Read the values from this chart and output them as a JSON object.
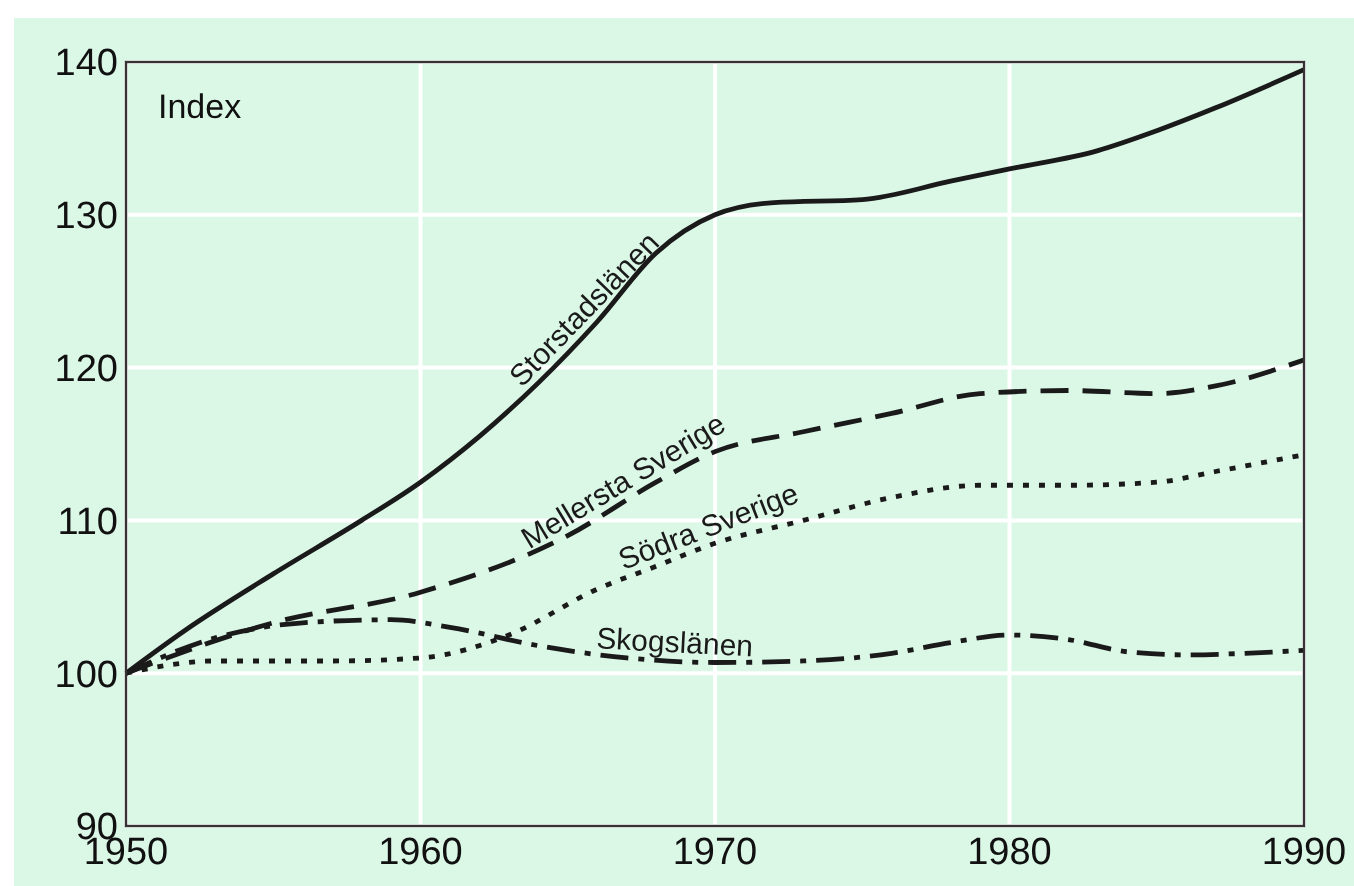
{
  "chart_data": {
    "type": "line",
    "ylabel": "Index",
    "xlim": [
      1950,
      1990
    ],
    "xticks": [
      1950,
      1960,
      1970,
      1980,
      1990
    ],
    "ylim": [
      90,
      140
    ],
    "yticks": [
      90,
      100,
      110,
      120,
      130,
      140
    ],
    "grid": true,
    "series": [
      {
        "name": "Storstadslänen",
        "color": "#1a1a1a",
        "line_style": "solid",
        "x": [
          1950,
          1952,
          1955,
          1958,
          1960,
          1962,
          1964,
          1966,
          1968,
          1970,
          1972,
          1975,
          1978,
          1980,
          1983,
          1985,
          1987,
          1990
        ],
        "values": [
          100,
          102.8,
          106.5,
          110,
          112.5,
          115.5,
          119,
          123,
          127.5,
          130,
          130.8,
          131,
          132.2,
          133,
          134.2,
          135.5,
          137,
          139.5
        ]
      },
      {
        "name": "Mellersta Sverige",
        "color": "#1a1a1a",
        "line_style": "dashed",
        "x": [
          1950,
          1955,
          1960,
          1965,
          1968,
          1970,
          1973,
          1976,
          1979,
          1982,
          1985,
          1987,
          1990
        ],
        "values": [
          100,
          103.3,
          105.3,
          109,
          112.5,
          114.5,
          115.8,
          117,
          118.3,
          118.5,
          118.3,
          118.8,
          120.5
        ]
      },
      {
        "name": "Södra Sverige",
        "color": "#1a1a1a",
        "line_style": "dotted",
        "x": [
          1950,
          1953,
          1957,
          1960,
          1963,
          1966,
          1968,
          1970,
          1973,
          1976,
          1979,
          1982,
          1985,
          1987,
          1990
        ],
        "values": [
          100,
          100.8,
          100.8,
          101,
          102.5,
          105.5,
          107,
          108.5,
          110,
          111.5,
          112.3,
          112.3,
          112.5,
          113.2,
          114.3
        ]
      },
      {
        "name": "Skogslänen",
        "color": "#1a1a1a",
        "line_style": "dashdot",
        "x": [
          1950,
          1953,
          1956,
          1959,
          1961,
          1964,
          1967,
          1970,
          1973,
          1976,
          1978,
          1980,
          1982,
          1984,
          1986,
          1988,
          1990
        ],
        "values": [
          100,
          102.3,
          103.3,
          103.5,
          103,
          101.8,
          101,
          100.7,
          100.8,
          101.3,
          102,
          102.5,
          102.2,
          101.4,
          101.2,
          101.3,
          101.5
        ]
      }
    ]
  }
}
